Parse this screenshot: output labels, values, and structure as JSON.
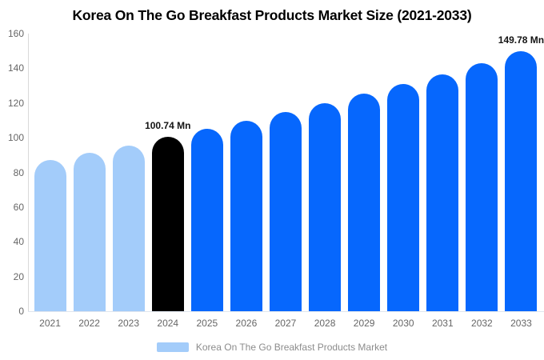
{
  "chart_data": {
    "type": "bar",
    "title": "Korea On The Go Breakfast Products Market Size (2021-2033)",
    "categories": [
      "2021",
      "2022",
      "2023",
      "2024",
      "2025",
      "2026",
      "2027",
      "2028",
      "2029",
      "2030",
      "2031",
      "2032",
      "2033"
    ],
    "values": [
      87.0,
      91.2,
      95.6,
      100.74,
      105.0,
      109.7,
      114.6,
      119.8,
      125.2,
      130.8,
      136.7,
      142.9,
      149.78
    ],
    "value_unit": "Mn",
    "ylim": [
      0,
      160
    ],
    "yticks": [
      0,
      20,
      40,
      60,
      80,
      100,
      120,
      140,
      160
    ],
    "grid": false,
    "legend": {
      "label": "Korea On The Go Breakfast Products Market",
      "position": "bottom"
    },
    "colors": {
      "light": "#A3CCFA",
      "primary": "#0667FD",
      "highlight": "#000000",
      "axis": "#d9d9d9",
      "tick_text": "#666666",
      "annotation_text": "#141414",
      "legend_text": "#8c8c8c"
    },
    "bar_color_keys": [
      "light",
      "light",
      "light",
      "highlight",
      "primary",
      "primary",
      "primary",
      "primary",
      "primary",
      "primary",
      "primary",
      "primary",
      "primary"
    ],
    "annotations": [
      {
        "category": "2024",
        "text": "100.74 Mn"
      },
      {
        "category": "2033",
        "text": "149.78 Mn"
      }
    ]
  }
}
